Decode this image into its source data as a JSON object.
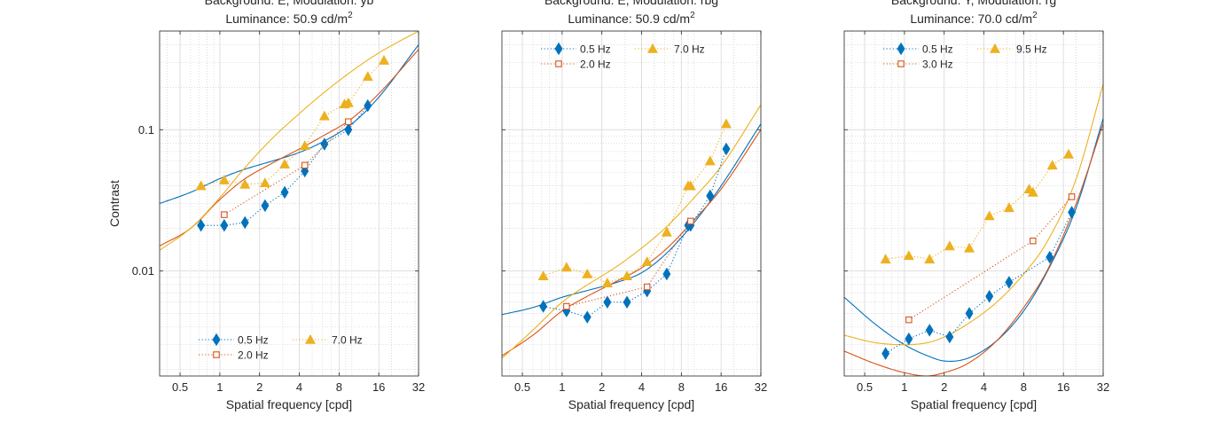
{
  "chart_data": [
    {
      "type": "line",
      "title_line1": "Background: E, Modulation: yb",
      "title_line2": "Luminance: 50.9 cd/m",
      "title_sup": "2",
      "xlabel": "Spatial frequency [cpd]",
      "ylabel": "Contrast",
      "xscale": "log",
      "yscale": "log",
      "xlim": [
        0.35,
        32
      ],
      "ylim": [
        0.0018,
        0.5
      ],
      "xticks": [
        "0.5",
        "1",
        "2",
        "4",
        "8",
        "16",
        "32"
      ],
      "yticks": [
        "0.01",
        "0.1"
      ],
      "legend_position": "bottom",
      "series": [
        {
          "name": "0.5 Hz",
          "marker": "diamond",
          "color": "#0072BD",
          "x": [
            0.72,
            1.08,
            1.55,
            2.2,
            3.1,
            4.4,
            6.2,
            9.4,
            13.2
          ],
          "y": [
            0.021,
            0.021,
            0.022,
            0.029,
            0.036,
            0.051,
            0.079,
            0.1,
            0.148
          ]
        },
        {
          "name": "2.0 Hz",
          "marker": "square",
          "color": "#D95319",
          "x": [
            1.08,
            4.4,
            9.4
          ],
          "y": [
            0.025,
            0.056,
            0.114
          ]
        },
        {
          "name": "7.0 Hz",
          "marker": "triangle",
          "color": "#EDB120",
          "x": [
            0.72,
            1.08,
            1.55,
            2.2,
            3.1,
            4.4,
            6.2,
            8.8,
            9.4,
            13.2,
            17.5
          ],
          "y": [
            0.04,
            0.044,
            0.041,
            0.042,
            0.057,
            0.077,
            0.125,
            0.152,
            0.155,
            0.238,
            0.31
          ]
        }
      ],
      "curves": [
        {
          "color": "#0072BD",
          "x": [
            0.35,
            0.6,
            1,
            1.5,
            2.5,
            4,
            6,
            10,
            16,
            32
          ],
          "y": [
            0.03,
            0.036,
            0.045,
            0.052,
            0.06,
            0.069,
            0.082,
            0.11,
            0.17,
            0.4
          ]
        },
        {
          "color": "#D95319",
          "x": [
            0.35,
            0.6,
            1,
            1.5,
            2.5,
            4,
            6,
            10,
            16,
            32
          ],
          "y": [
            0.015,
            0.02,
            0.032,
            0.044,
            0.058,
            0.073,
            0.09,
            0.12,
            0.18,
            0.37
          ]
        },
        {
          "color": "#EDB120",
          "x": [
            0.35,
            0.6,
            1,
            1.5,
            2.5,
            4,
            6,
            10,
            16,
            32
          ],
          "y": [
            0.014,
            0.02,
            0.033,
            0.052,
            0.087,
            0.13,
            0.18,
            0.26,
            0.35,
            0.5
          ]
        }
      ]
    },
    {
      "type": "line",
      "title_line1": "Background: E, Modulation: rbg",
      "title_line2": "Luminance: 50.9 cd/m",
      "title_sup": "2",
      "xlabel": "Spatial frequency [cpd]",
      "ylabel": "",
      "xscale": "log",
      "yscale": "log",
      "xlim": [
        0.35,
        32
      ],
      "ylim": [
        0.0018,
        0.5
      ],
      "xticks": [
        "0.5",
        "1",
        "2",
        "4",
        "8",
        "16",
        "32"
      ],
      "yticks": [],
      "legend_position": "top",
      "series": [
        {
          "name": "0.5 Hz",
          "marker": "diamond",
          "color": "#0072BD",
          "x": [
            0.72,
            1.08,
            1.55,
            2.2,
            3.1,
            4.4,
            6.2,
            9.0,
            9.4,
            13.2,
            17.5
          ],
          "y": [
            0.0056,
            0.0052,
            0.0047,
            0.006,
            0.006,
            0.0072,
            0.0095,
            0.021,
            0.021,
            0.034,
            0.073
          ]
        },
        {
          "name": "2.0 Hz",
          "marker": "square",
          "color": "#D95319",
          "x": [
            1.08,
            4.4,
            9.4
          ],
          "y": [
            0.0056,
            0.0077,
            0.0225
          ]
        },
        {
          "name": "7.0 Hz",
          "marker": "triangle",
          "color": "#EDB120",
          "x": [
            0.72,
            1.08,
            1.55,
            2.2,
            3.1,
            4.4,
            6.2,
            9.0,
            9.4,
            13.2,
            17.5
          ],
          "y": [
            0.0092,
            0.0106,
            0.0095,
            0.0082,
            0.0092,
            0.0116,
            0.0188,
            0.04,
            0.04,
            0.06,
            0.11
          ]
        }
      ],
      "curves": [
        {
          "color": "#0072BD",
          "x": [
            0.35,
            0.6,
            1,
            1.5,
            2.5,
            4,
            6,
            10,
            16,
            32
          ],
          "y": [
            0.0049,
            0.0055,
            0.0065,
            0.0072,
            0.0082,
            0.0097,
            0.013,
            0.022,
            0.04,
            0.11
          ]
        },
        {
          "color": "#D95319",
          "x": [
            0.35,
            0.6,
            1,
            1.5,
            2.5,
            4,
            6,
            10,
            16,
            32
          ],
          "y": [
            0.0025,
            0.0035,
            0.0052,
            0.0065,
            0.0083,
            0.0105,
            0.014,
            0.023,
            0.038,
            0.1
          ]
        },
        {
          "color": "#EDB120",
          "x": [
            0.35,
            0.6,
            1,
            1.5,
            2.5,
            4,
            6,
            10,
            16,
            32
          ],
          "y": [
            0.0024,
            0.0038,
            0.006,
            0.0078,
            0.0105,
            0.0145,
            0.02,
            0.033,
            0.055,
            0.15
          ]
        }
      ]
    },
    {
      "type": "line",
      "title_line1": "Background: Y, Modulation: rg",
      "title_line2": "Luminance: 70.0 cd/m",
      "title_sup": "2",
      "xlabel": "Spatial frequency [cpd]",
      "ylabel": "",
      "xscale": "log",
      "yscale": "log",
      "xlim": [
        0.35,
        32
      ],
      "ylim": [
        0.0018,
        0.5
      ],
      "xticks": [
        "0.5",
        "1",
        "2",
        "4",
        "8",
        "16",
        "32"
      ],
      "yticks": [],
      "legend_position": "top",
      "series": [
        {
          "name": "0.5 Hz",
          "marker": "diamond",
          "color": "#0072BD",
          "x": [
            0.72,
            1.08,
            1.55,
            2.2,
            3.1,
            4.4,
            6.2,
            12.6,
            18.5
          ],
          "y": [
            0.0026,
            0.0033,
            0.0038,
            0.0034,
            0.005,
            0.0066,
            0.0083,
            0.0125,
            0.026
          ]
        },
        {
          "name": "3.0 Hz",
          "marker": "square",
          "color": "#D95319",
          "x": [
            1.08,
            9.4,
            18.5
          ],
          "y": [
            0.0045,
            0.0163,
            0.0335
          ]
        },
        {
          "name": "9.5 Hz",
          "marker": "triangle",
          "color": "#EDB120",
          "x": [
            0.72,
            1.08,
            1.55,
            2.2,
            3.1,
            4.4,
            6.2,
            8.8,
            9.4,
            13.2,
            17.5
          ],
          "y": [
            0.0121,
            0.0128,
            0.0121,
            0.015,
            0.0145,
            0.0245,
            0.028,
            0.038,
            0.036,
            0.056,
            0.067
          ]
        }
      ],
      "curves": [
        {
          "color": "#0072BD",
          "x": [
            0.35,
            0.6,
            1,
            1.5,
            2,
            3,
            5,
            8,
            12,
            20,
            32
          ],
          "y": [
            0.0065,
            0.0042,
            0.003,
            0.0025,
            0.0023,
            0.0024,
            0.0032,
            0.0052,
            0.0098,
            0.028,
            0.12
          ]
        },
        {
          "color": "#D95319",
          "x": [
            0.35,
            0.6,
            1,
            1.5,
            2,
            3,
            5,
            8,
            12,
            20,
            32
          ],
          "y": [
            0.0027,
            0.0022,
            0.0019,
            0.0018,
            0.0019,
            0.0022,
            0.0032,
            0.0055,
            0.01,
            0.03,
            0.11
          ]
        },
        {
          "color": "#EDB120",
          "x": [
            0.35,
            0.6,
            1,
            1.5,
            2,
            3,
            5,
            8,
            12,
            20,
            32
          ],
          "y": [
            0.0035,
            0.0031,
            0.003,
            0.0031,
            0.0034,
            0.0042,
            0.006,
            0.0095,
            0.016,
            0.045,
            0.21
          ]
        }
      ]
    }
  ]
}
